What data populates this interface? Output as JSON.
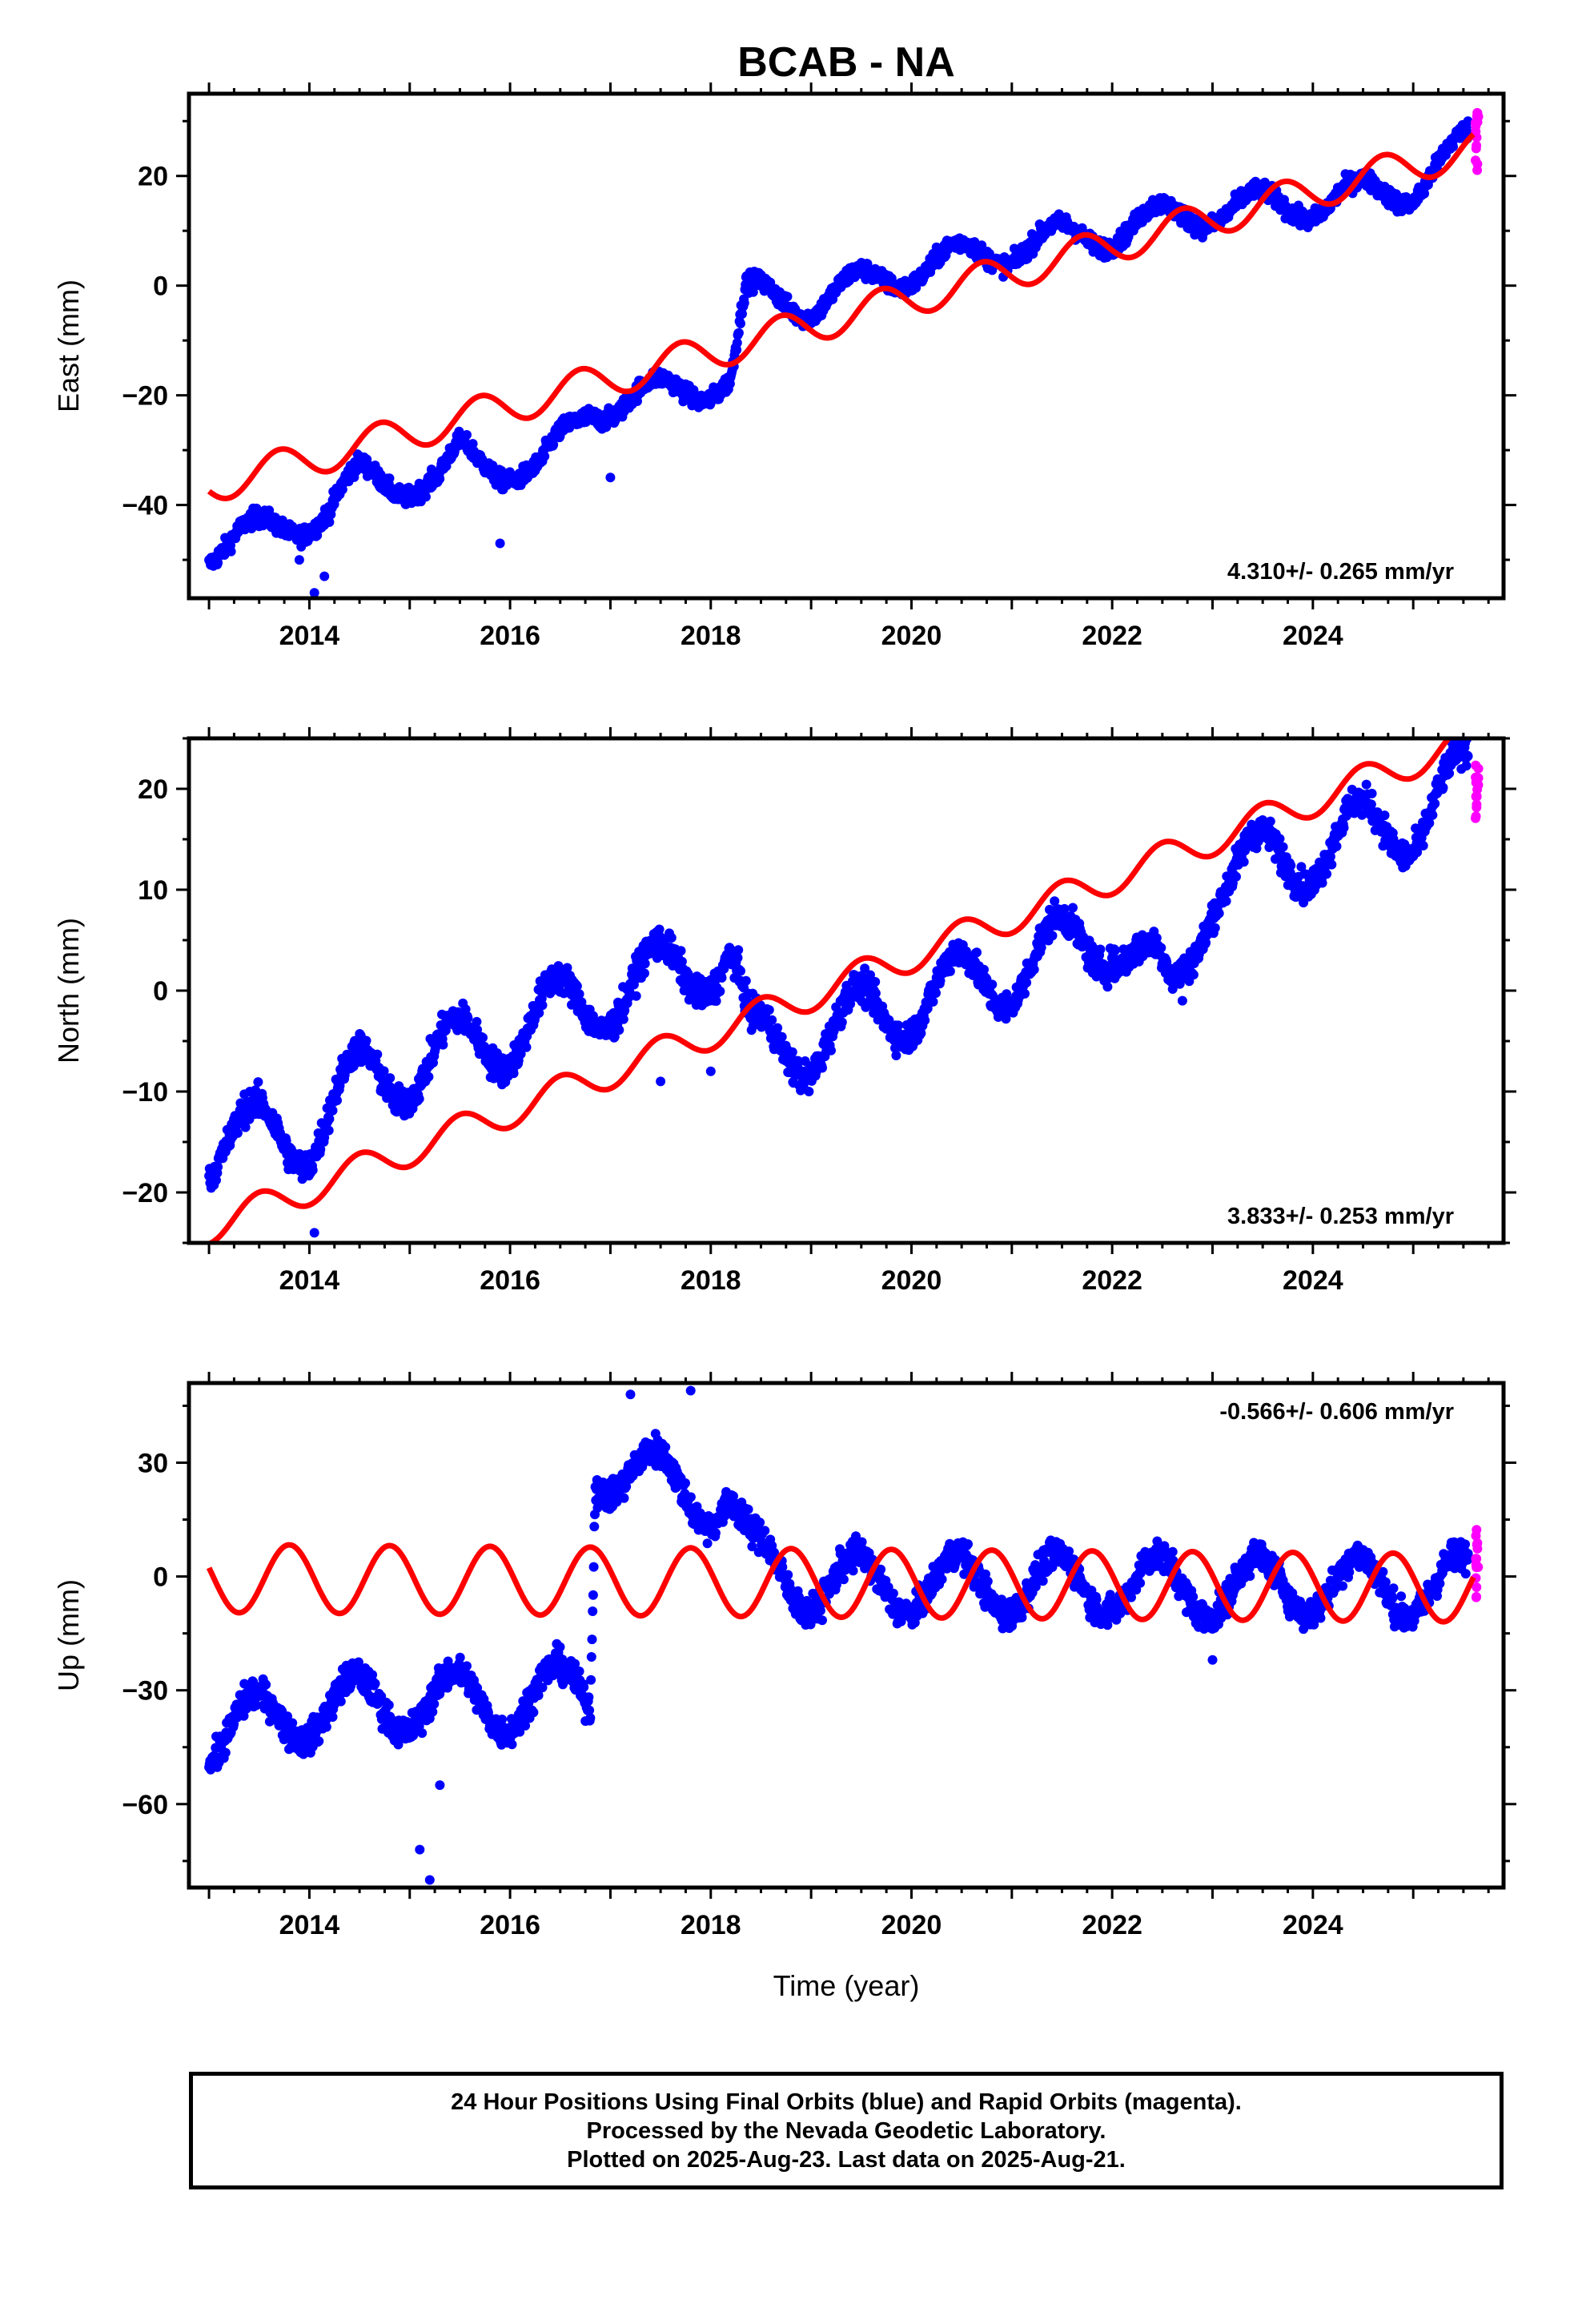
{
  "title": "BCAB - NA",
  "xlabel": "Time (year)",
  "caption": [
    "24 Hour Positions Using Final Orbits (blue) and Rapid Orbits (magenta).",
    "Processed by the Nevada Geodetic Laboratory.",
    "Plotted on 2025-Aug-23. Last data on 2025-Aug-21."
  ],
  "colors": {
    "final_orbits": "#0000ff",
    "rapid_orbits": "#ff00ff",
    "model": "#ff0000",
    "frame": "#000000"
  },
  "chart_data": [
    {
      "type": "scatter",
      "component": "east",
      "ylabel": "East (mm)",
      "rate_label": "4.310+/- 0.265 mm/yr",
      "xlim": [
        2012.8,
        2025.9
      ],
      "ylim": [
        -57,
        35
      ],
      "xticks": [
        2014,
        2016,
        2018,
        2020,
        2022,
        2024
      ],
      "yticks": [
        -40,
        -20,
        0,
        20
      ],
      "series": [
        {
          "kind": "final",
          "trend": [
            [
              2013.0,
              -48
            ],
            [
              2014.2,
              -41
            ],
            [
              2014.5,
              -35
            ],
            [
              2015.3,
              -36
            ],
            [
              2015.5,
              -31
            ],
            [
              2016.3,
              -34
            ],
            [
              2016.8,
              -22
            ],
            [
              2017.4,
              -20
            ],
            [
              2018.2,
              -17
            ],
            [
              2018.35,
              -2
            ],
            [
              2019.0,
              -3
            ],
            [
              2020.0,
              3
            ],
            [
              2021.0,
              7
            ],
            [
              2022.0,
              10
            ],
            [
              2023.0,
              14
            ],
            [
              2024.0,
              15
            ],
            [
              2025.0,
              18
            ],
            [
              2025.55,
              26
            ]
          ],
          "seasonal_amp": 3,
          "noise": 1.6
        },
        {
          "kind": "rapid",
          "x_range": [
            2025.62,
            2025.65
          ],
          "y_range": [
            21,
            33
          ]
        },
        {
          "kind": "model",
          "start": [
            2013.0,
            -36.5
          ],
          "end": [
            2025.6,
            25
          ],
          "seasonal_amp": 3.2,
          "phase_peak": 0.7
        }
      ],
      "outliers": [
        [
          2013.9,
          -50
        ],
        [
          2014.05,
          -56
        ],
        [
          2014.15,
          -53
        ],
        [
          2015.9,
          -47
        ],
        [
          2017.0,
          -35
        ]
      ]
    },
    {
      "type": "scatter",
      "component": "north",
      "ylabel": "North (mm)",
      "rate_label": "3.833+/- 0.253 mm/yr",
      "xlim": [
        2012.8,
        2025.9
      ],
      "ylim": [
        -25,
        25
      ],
      "xticks": [
        2014,
        2016,
        2018,
        2020,
        2022,
        2024
      ],
      "yticks": [
        -20,
        -10,
        0,
        10,
        20
      ],
      "series": [
        {
          "kind": "final",
          "trend": [
            [
              2013.0,
              -15
            ],
            [
              2014.0,
              -14
            ],
            [
              2014.5,
              -9
            ],
            [
              2015.5,
              -6
            ],
            [
              2016.5,
              -2
            ],
            [
              2017.4,
              1
            ],
            [
              2018.2,
              4
            ],
            [
              2018.4,
              -6
            ],
            [
              2019.0,
              -5
            ],
            [
              2020.0,
              -1
            ],
            [
              2021.0,
              2
            ],
            [
              2022.0,
              6
            ],
            [
              2022.6,
              -1
            ],
            [
              2023.0,
              11
            ],
            [
              2024.0,
              14
            ],
            [
              2025.0,
              17
            ],
            [
              2025.55,
              21
            ]
          ],
          "seasonal_amp": 3.5,
          "noise": 1.5
        },
        {
          "kind": "rapid",
          "x_range": [
            2025.62,
            2025.65
          ],
          "y_range": [
            17,
            24
          ]
        },
        {
          "kind": "model",
          "start": [
            2013.0,
            -23.5
          ],
          "end": [
            2025.6,
            25
          ],
          "seasonal_amp": 1.6,
          "phase_peak": 0.5
        }
      ],
      "outliers": [
        [
          2014.05,
          -24
        ],
        [
          2017.5,
          -9
        ],
        [
          2018.0,
          -8
        ],
        [
          2022.7,
          -1
        ]
      ]
    },
    {
      "type": "scatter",
      "component": "up",
      "ylabel": "Up (mm)",
      "rate_label": "-0.566+/- 0.606 mm/yr",
      "xlim": [
        2012.8,
        2025.9
      ],
      "ylim": [
        -82,
        51
      ],
      "xticks": [
        2014,
        2016,
        2018,
        2020,
        2022,
        2024
      ],
      "yticks": [
        -60,
        -30,
        0,
        30
      ],
      "series": [
        {
          "kind": "final",
          "trend": [
            [
              2013.0,
              -42
            ],
            [
              2014.0,
              -35
            ],
            [
              2015.0,
              -33
            ],
            [
              2016.0,
              -33
            ],
            [
              2016.8,
              -30
            ],
            [
              2016.85,
              30
            ],
            [
              2017.5,
              25
            ],
            [
              2018.2,
              20
            ],
            [
              2018.4,
              4
            ],
            [
              2019.0,
              -2
            ],
            [
              2020.0,
              -2
            ],
            [
              2021.0,
              -2
            ],
            [
              2022.0,
              -2
            ],
            [
              2023.0,
              -3
            ],
            [
              2024.0,
              -2
            ],
            [
              2025.0,
              -3
            ],
            [
              2025.55,
              -2
            ]
          ],
          "seasonal_amp": 8,
          "noise": 4
        },
        {
          "kind": "rapid",
          "x_range": [
            2025.62,
            2025.65
          ],
          "y_range": [
            -7,
            14
          ]
        },
        {
          "kind": "model",
          "start": [
            2013.0,
            -0.5
          ],
          "end": [
            2025.6,
            -3
          ],
          "seasonal_amp": 9,
          "phase_peak": 0.8
        }
      ],
      "outliers": [
        [
          2015.1,
          -72
        ],
        [
          2015.2,
          -80
        ],
        [
          2015.3,
          -55
        ],
        [
          2017.2,
          48
        ],
        [
          2017.8,
          49
        ],
        [
          2023.0,
          -22
        ]
      ]
    }
  ]
}
